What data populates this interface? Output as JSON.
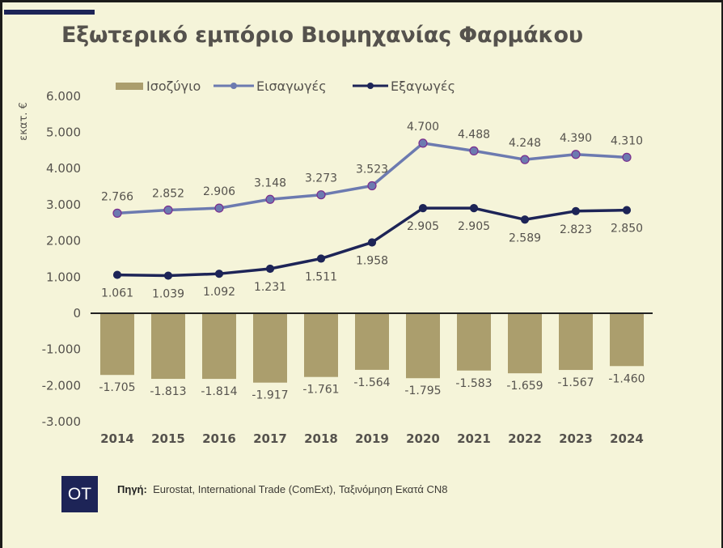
{
  "title": "Εξωτερικό εμπόριο Βιομηχανίας Φαρμάκου",
  "source": {
    "label": "Πηγή:",
    "text": "Eurostat, International Trade (ComExt), Ταξινόμηση Εκατά CN8"
  },
  "logo_text": "OT",
  "colors": {
    "balance": "#ab9e6d",
    "imports": "#6c7ab0",
    "exports": "#1d2457",
    "marker_edge": "#7b2d8e",
    "card": "#f5f4d9",
    "accent": "#1d2457"
  },
  "chart_data": {
    "type": "bar+line",
    "title": "Εξωτερικό εμπόριο Βιομηχανίας Φαρμάκου",
    "ylabel": "εκατ. €",
    "xlabel": "",
    "ylim": [
      -3000,
      6000
    ],
    "yticks": [
      6000,
      5000,
      4000,
      3000,
      2000,
      1000,
      0,
      -1000,
      -2000,
      -3000
    ],
    "ytick_labels": [
      "6.000",
      "5.000",
      "4.000",
      "3.000",
      "2.000",
      "1.000",
      "0",
      "-1.000",
      "-2.000",
      "-3.000"
    ],
    "grid": false,
    "legend_position": "top",
    "categories": [
      "2014",
      "2015",
      "2016",
      "2017",
      "2018",
      "2019",
      "2020",
      "2021",
      "2022",
      "2023",
      "2024"
    ],
    "series": [
      {
        "name": "Ισοζύγιο",
        "type": "bar",
        "values": [
          -1705,
          -1813,
          -1814,
          -1917,
          -1761,
          -1564,
          -1795,
          -1583,
          -1659,
          -1567,
          -1460
        ],
        "labels": [
          "-1.705",
          "-1.813",
          "-1.814",
          "-1.917",
          "-1.761",
          "-1.564",
          "-1.795",
          "-1.583",
          "-1.659",
          "-1.567",
          "-1.460"
        ]
      },
      {
        "name": "Εισαγωγές",
        "type": "line",
        "values": [
          2766,
          2852,
          2906,
          3148,
          3273,
          3523,
          4700,
          4488,
          4248,
          4390,
          4310
        ],
        "labels": [
          "2.766",
          "2.852",
          "2.906",
          "3.148",
          "3.273",
          "3.523",
          "4.700",
          "4.488",
          "4.248",
          "4.390",
          "4.310"
        ]
      },
      {
        "name": "Εξαγωγές",
        "type": "line",
        "values": [
          1061,
          1039,
          1092,
          1231,
          1511,
          1958,
          2905,
          2905,
          2589,
          2823,
          2850
        ],
        "labels": [
          "1.061",
          "1.039",
          "1.092",
          "1.231",
          "1.511",
          "1.958",
          "2.905",
          "2.905",
          "2.589",
          "2.823",
          "2.850"
        ]
      }
    ]
  }
}
